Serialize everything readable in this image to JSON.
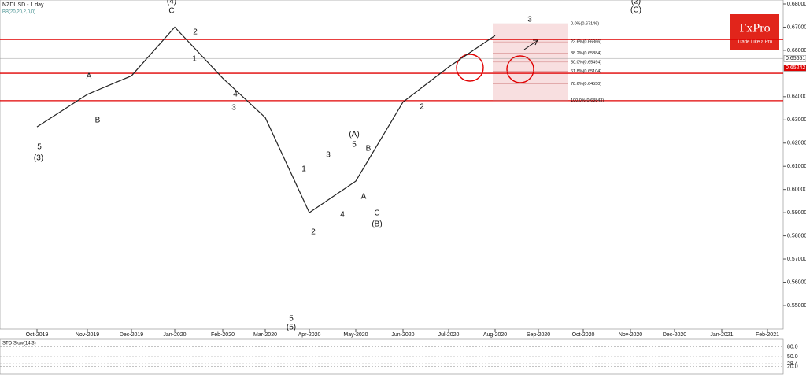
{
  "chart_data": {
    "type": "line",
    "title": "NZDUSD - 1 day",
    "subtitle": "BB(20,20,2,0,0)",
    "categories": [
      "Oct-2019",
      "Nov-2019",
      "Dec-2019",
      "Jan-2020",
      "Feb-2020",
      "Mar-2020",
      "Apr-2020",
      "May-2020",
      "Jun-2020",
      "Jul-2020",
      "Aug-2020",
      "Sep-2020",
      "Oct-2020",
      "Nov-2020",
      "Dec-2020",
      "Jan-2021",
      "Feb-2021"
    ],
    "series": [
      {
        "color": "#222222",
        "values": [
          0.627,
          0.641,
          0.649,
          0.67,
          0.648,
          0.631,
          0.59,
          0.6036,
          0.6377,
          0.6528,
          0.6664,
          null,
          null,
          null,
          null,
          null,
          null
        ]
      }
    ],
    "ylim": [
      0.5398,
      0.6817
    ],
    "yticks": [
      {
        "value": 0.68,
        "label": "0.68000"
      },
      {
        "value": 0.67,
        "label": "0.67000"
      },
      {
        "value": 0.66,
        "label": "0.66000"
      },
      {
        "value": 0.64,
        "label": "0.64000"
      },
      {
        "value": 0.63,
        "label": "0.63000"
      },
      {
        "value": 0.62,
        "label": "0.62000"
      },
      {
        "value": 0.61,
        "label": "0.61000"
      },
      {
        "value": 0.6,
        "label": "0.60000"
      },
      {
        "value": 0.59,
        "label": "0.59000"
      },
      {
        "value": 0.58,
        "label": "0.58000"
      },
      {
        "value": 0.57,
        "label": "0.57000"
      },
      {
        "value": 0.56,
        "label": "0.56000"
      },
      {
        "value": 0.55,
        "label": "0.55000"
      }
    ],
    "price_markers": [
      {
        "value": 0.65651,
        "label": "0.65651",
        "color": "#ffffff"
      },
      {
        "value": 0.65242,
        "label": "0.65242",
        "color": "#e00000"
      }
    ],
    "levels": [
      {
        "value": 0.6647,
        "color": "#e00000"
      },
      {
        "value": 0.6501,
        "color": "#e00000"
      },
      {
        "value": 0.6383,
        "color": "#e00000"
      }
    ],
    "fibonacci": [
      {
        "value": 0.67146,
        "label": "0.0%(0.67146)"
      },
      {
        "value": 0.66366,
        "label": "23.6%(0.66366)"
      },
      {
        "value": 0.65884,
        "label": "38.2%(0.65884)"
      },
      {
        "value": 0.65494,
        "label": "50.0%(0.65494)"
      },
      {
        "value": 0.65104,
        "label": "61.8%(0.65104)"
      },
      {
        "value": 0.6455,
        "label": "78.6%(0.64550)"
      },
      {
        "value": 0.63843,
        "label": "100.0%(0.63843)"
      }
    ],
    "annotations": [
      "(4)",
      "C",
      "2",
      "1",
      "A",
      "B",
      "5",
      "(3)",
      "4",
      "3",
      "(A)",
      "5",
      "3",
      "1",
      "B",
      "A",
      "4",
      "2",
      "C",
      "(B)",
      "5",
      "(5)",
      "2",
      "3",
      "(2)",
      "(C)"
    ],
    "oscillator": {
      "title": "STO Slow(14,3)",
      "ylim": [
        -2.5,
        102.5
      ],
      "yticks": [
        {
          "value": 80,
          "label": "80.0"
        },
        {
          "value": 50,
          "label": "50.0"
        },
        {
          "value": 28.4,
          "label": "28.4"
        },
        {
          "value": 20,
          "label": "20.0"
        }
      ]
    },
    "logo": {
      "name": "FxPro",
      "tagline": "Trade Like a Pro"
    }
  }
}
